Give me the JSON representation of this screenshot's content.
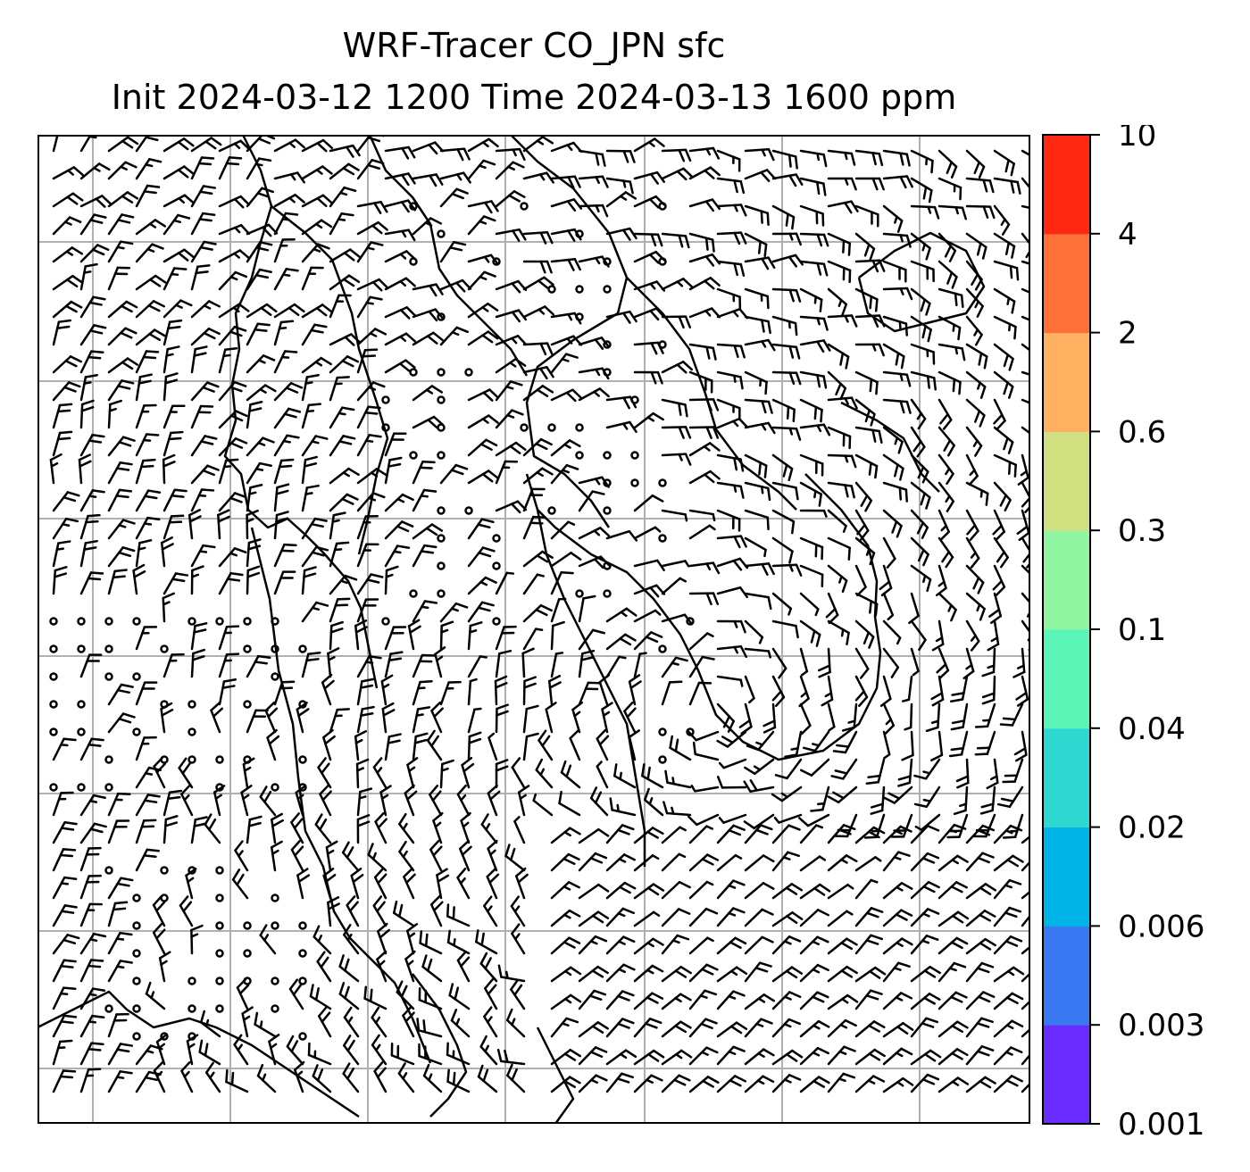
{
  "title": {
    "line1": "WRF-Tracer CO_JPN sfc",
    "line2": "Init 2024-03-12 1200 Time 2024-03-13 1600 ppm"
  },
  "colorbar": {
    "levels": [
      "0.001",
      "0.003",
      "0.006",
      "0.02",
      "0.04",
      "0.1",
      "0.3",
      "0.6",
      "2",
      "4",
      "10"
    ],
    "colors": [
      "#6a2cff",
      "#3878f0",
      "#00b4e8",
      "#2ed8d0",
      "#5cf5b8",
      "#90f5a0",
      "#d0e080",
      "#ffb060",
      "#ff7038",
      "#ff2810"
    ]
  },
  "map": {
    "background": "#ffffff",
    "grid_color": "#b0b0b0",
    "coastline_color": "#000000",
    "wind_symbols": "wind barbs and calm-circles"
  }
}
